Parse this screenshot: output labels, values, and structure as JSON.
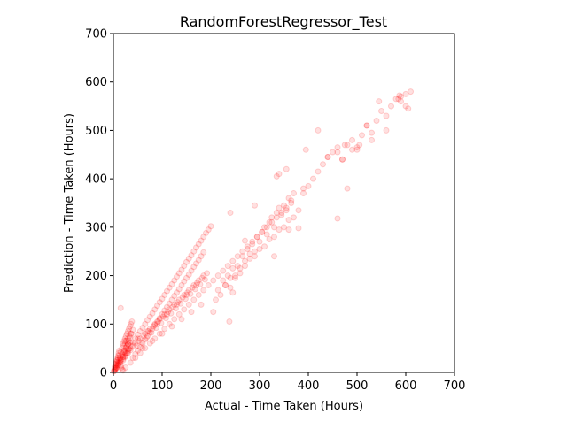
{
  "chart_data": {
    "type": "scatter",
    "title": "RandomForestRegressor_Test",
    "xlabel": "Actual - Time Taken (Hours)",
    "ylabel": "Prediction - Time Taken (Hours)",
    "xlim": [
      0,
      700
    ],
    "ylim": [
      0,
      700
    ],
    "xticks": [
      0,
      100,
      200,
      300,
      400,
      500,
      600,
      700
    ],
    "yticks": [
      0,
      100,
      200,
      300,
      400,
      500,
      600,
      700
    ],
    "grid": false,
    "marker_color": "#ff0000",
    "marker_alpha": 0.12,
    "series": [
      {
        "x": [
          2,
          3,
          4,
          5,
          6,
          7,
          8,
          9,
          10,
          11,
          12,
          13,
          14,
          15,
          16,
          18,
          20,
          3,
          5,
          7,
          9,
          12,
          15,
          18,
          21,
          24,
          27,
          30,
          33,
          36,
          2,
          4,
          6,
          8,
          10,
          14,
          18,
          22,
          26,
          30,
          34,
          5,
          10,
          15,
          20,
          25,
          30,
          35,
          1,
          3,
          6,
          9,
          12,
          15,
          20,
          25,
          30,
          35,
          40,
          20,
          22,
          24,
          26,
          28,
          30,
          32,
          34,
          36,
          38,
          25,
          28,
          31,
          34,
          37,
          40,
          18,
          22,
          26,
          30,
          20,
          24,
          28,
          32,
          10,
          15,
          20,
          25,
          30,
          35,
          40,
          45,
          50,
          55,
          60,
          65,
          70,
          75,
          80,
          85,
          90,
          95,
          100,
          105,
          110,
          115,
          120,
          125,
          130,
          135,
          140,
          145,
          150,
          155,
          160,
          165,
          170,
          175,
          180,
          185,
          190,
          195,
          200,
          40,
          45,
          50,
          55,
          60,
          65,
          70,
          75,
          80,
          85,
          90,
          95,
          100,
          105,
          110,
          115,
          120,
          125,
          130,
          135,
          140,
          145,
          150,
          155,
          160,
          165,
          170,
          175,
          180,
          185,
          45,
          48,
          52,
          55,
          58,
          62,
          65,
          68,
          72,
          75,
          78,
          82,
          85,
          88,
          92,
          95,
          98,
          102,
          105,
          108,
          112,
          115,
          118,
          122,
          125,
          128,
          132,
          135,
          138,
          142,
          145,
          148,
          152,
          155,
          158,
          162,
          165,
          168,
          172,
          175,
          178,
          182,
          185,
          188,
          192,
          50,
          70,
          90,
          110,
          130,
          150,
          170,
          60,
          80,
          100,
          120,
          140,
          160,
          180,
          25,
          35,
          45,
          55,
          65,
          75,
          85,
          95,
          105,
          115,
          125,
          135,
          145,
          155,
          165,
          175,
          185,
          195,
          205,
          215,
          225,
          235,
          245,
          255,
          265,
          275,
          285,
          295,
          305,
          315,
          325,
          335,
          345,
          355,
          365,
          210,
          215,
          220,
          225,
          230,
          235,
          240,
          245,
          250,
          255,
          260,
          265,
          270,
          275,
          280,
          285,
          290,
          295,
          300,
          305,
          310,
          315,
          320,
          325,
          330,
          335,
          340,
          345,
          350,
          355,
          360,
          365,
          370,
          230,
          250,
          270,
          290,
          310,
          330,
          350,
          370,
          240,
          260,
          280,
          300,
          320,
          340,
          360,
          380,
          390,
          400,
          410,
          420,
          430,
          440,
          450,
          460,
          470,
          480,
          490,
          500,
          510,
          520,
          530,
          540,
          550,
          560,
          570,
          580,
          590,
          600,
          610,
          240,
          290,
          335,
          340,
          355,
          390,
          395,
          420,
          440,
          460,
          470,
          475,
          480,
          490,
          500,
          505,
          520,
          530,
          545,
          560,
          585,
          587,
          590,
          600,
          605,
          460,
          330,
          238,
          15,
          25,
          270,
          360,
          380,
          245,
          205
        ],
        "y": [
          5,
          8,
          12,
          15,
          18,
          22,
          25,
          30,
          35,
          40,
          45,
          28,
          20,
          14,
          10,
          6,
          4,
          12,
          18,
          25,
          30,
          35,
          42,
          50,
          55,
          60,
          65,
          70,
          75,
          80,
          3,
          6,
          10,
          16,
          22,
          30,
          38,
          45,
          52,
          58,
          62,
          8,
          15,
          22,
          28,
          34,
          40,
          46,
          2,
          5,
          9,
          14,
          20,
          26,
          32,
          38,
          44,
          50,
          55,
          60,
          65,
          70,
          75,
          80,
          85,
          90,
          95,
          100,
          105,
          45,
          55,
          65,
          72,
          80,
          88,
          35,
          42,
          50,
          58,
          25,
          32,
          40,
          48,
          18,
          25,
          32,
          40,
          48,
          55,
          62,
          70,
          78,
          85,
          92,
          100,
          108,
          115,
          122,
          130,
          138,
          145,
          152,
          160,
          168,
          175,
          182,
          190,
          198,
          205,
          212,
          220,
          228,
          235,
          242,
          250,
          258,
          265,
          272,
          280,
          288,
          295,
          302,
          30,
          38,
          45,
          52,
          60,
          68,
          75,
          82,
          90,
          98,
          105,
          112,
          120,
          128,
          135,
          142,
          150,
          158,
          165,
          172,
          180,
          188,
          195,
          202,
          210,
          218,
          225,
          232,
          240,
          248,
          60,
          55,
          65,
          70,
          62,
          75,
          80,
          72,
          85,
          90,
          82,
          95,
          100,
          92,
          105,
          110,
          102,
          115,
          120,
          112,
          125,
          130,
          122,
          135,
          140,
          132,
          145,
          150,
          142,
          155,
          160,
          152,
          165,
          170,
          162,
          175,
          180,
          172,
          185,
          190,
          182,
          195,
          200,
          192,
          205,
          70,
          85,
          100,
          120,
          140,
          160,
          180,
          50,
          65,
          80,
          95,
          110,
          125,
          140,
          10,
          20,
          30,
          40,
          50,
          60,
          70,
          80,
          90,
          100,
          110,
          120,
          130,
          140,
          150,
          160,
          170,
          180,
          190,
          200,
          210,
          220,
          230,
          240,
          250,
          260,
          270,
          280,
          290,
          300,
          310,
          320,
          330,
          340,
          350,
          150,
          170,
          160,
          190,
          180,
          200,
          175,
          215,
          195,
          220,
          205,
          240,
          230,
          255,
          245,
          265,
          250,
          280,
          270,
          290,
          300,
          285,
          310,
          320,
          300,
          330,
          340,
          325,
          345,
          335,
          360,
          355,
          370,
          180,
          200,
          220,
          240,
          260,
          280,
          300,
          320,
          195,
          215,
          235,
          255,
          275,
          295,
          315,
          335,
          370,
          385,
          400,
          415,
          430,
          445,
          455,
          465,
          440,
          470,
          480,
          460,
          490,
          510,
          495,
          520,
          540,
          530,
          550,
          565,
          560,
          575,
          580,
          330,
          345,
          405,
          410,
          420,
          380,
          460,
          500,
          445,
          455,
          440,
          470,
          380,
          460,
          465,
          470,
          510,
          480,
          560,
          500,
          565,
          572,
          570,
          550,
          545,
          318,
          240,
          105,
          133,
          65,
          272,
          295,
          298,
          165,
          125
        ]
      }
    ]
  }
}
